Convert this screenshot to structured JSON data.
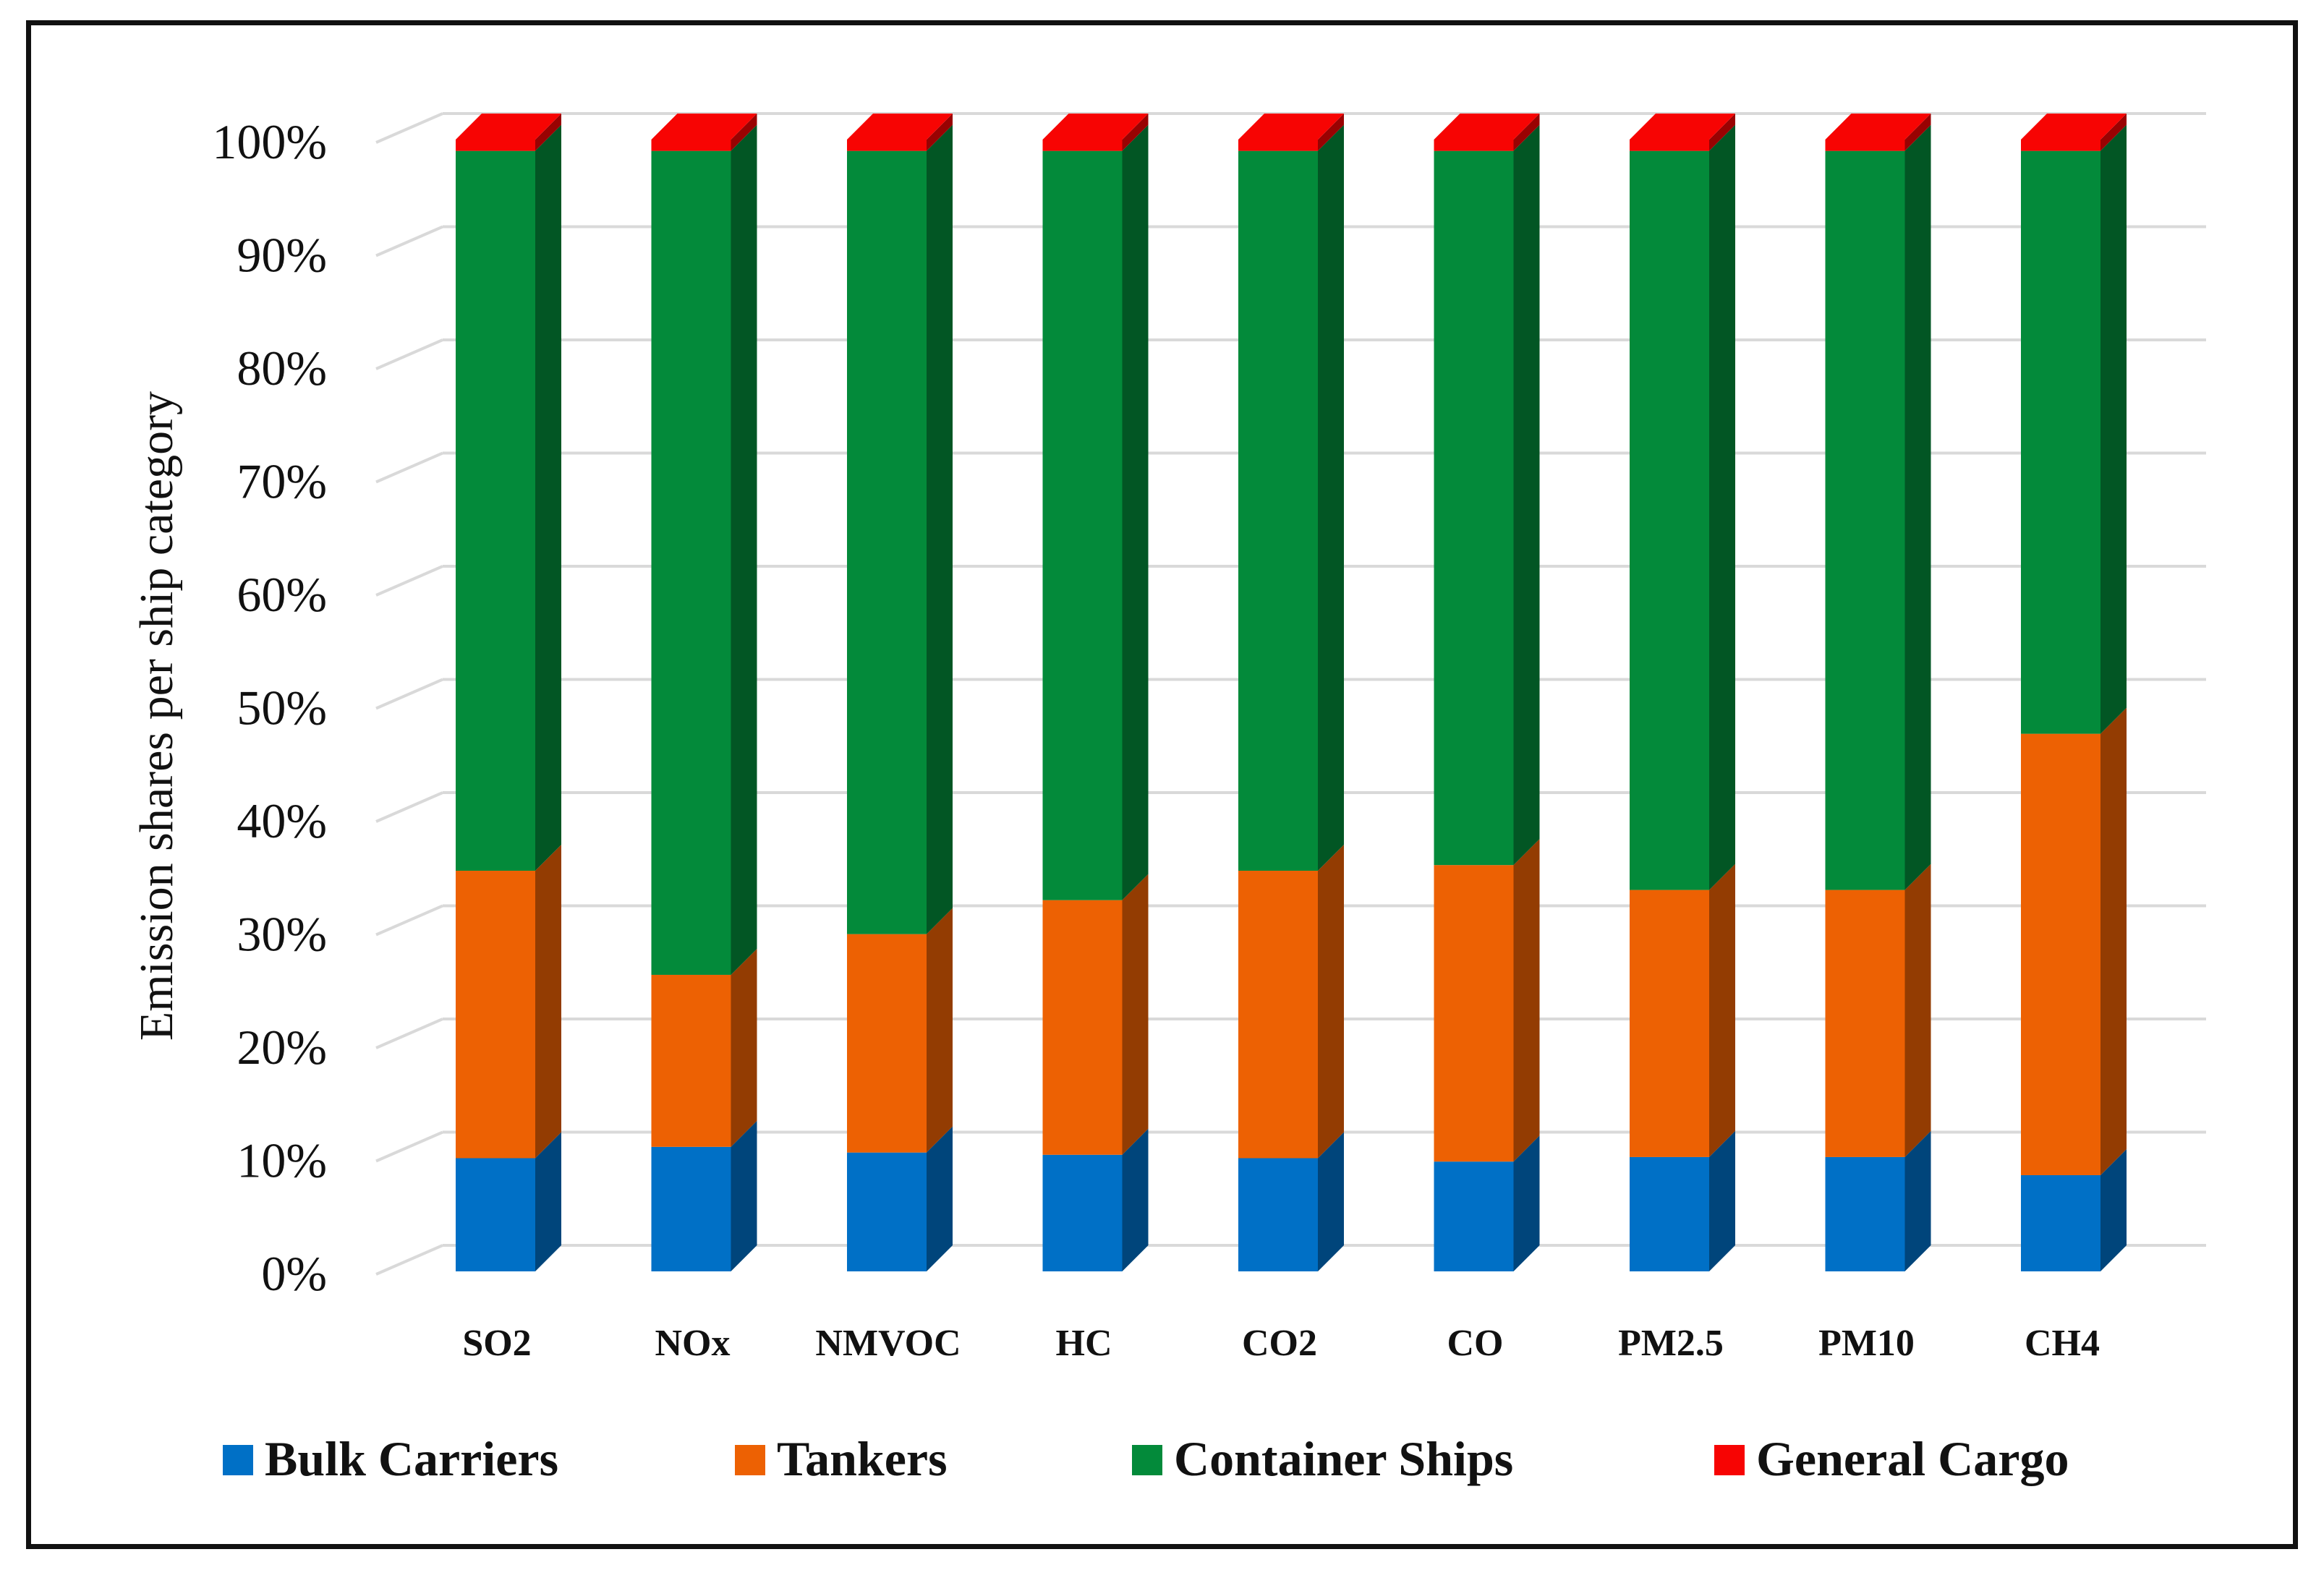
{
  "chart_data": {
    "type": "bar",
    "stacked": true,
    "percent_stacked": true,
    "three_d": true,
    "categories": [
      "SO2",
      "NOx",
      "NMVOC",
      "HC",
      "CO2",
      "CO",
      "PM2.5",
      "PM10",
      "CH4"
    ],
    "series": [
      {
        "name": "Bulk Carriers",
        "color": "#0070C6",
        "values": [
          10,
          11,
          10.5,
          10.3,
          10,
          9.7,
          10.1,
          10.1,
          8.5
        ]
      },
      {
        "name": "Tankers",
        "color": "#ED6103",
        "values": [
          25.4,
          15.2,
          19.3,
          22.5,
          25.4,
          26.2,
          23.6,
          23.6,
          39
        ]
      },
      {
        "name": "Container Ships",
        "color": "#038A3A",
        "values": [
          63.6,
          72.8,
          69.2,
          66.2,
          63.6,
          63.1,
          65.3,
          65.3,
          51.5
        ]
      },
      {
        "name": "General Cargo",
        "color": "#F70403",
        "values": [
          1,
          1,
          1,
          1,
          1,
          1,
          1,
          1,
          1
        ]
      }
    ],
    "ylabel": "Emission shares per ship category",
    "xlabel": "",
    "ylim": [
      0,
      100
    ],
    "yticks": [
      "0%",
      "10%",
      "20%",
      "30%",
      "40%",
      "50%",
      "60%",
      "70%",
      "80%",
      "90%",
      "100%"
    ],
    "grid": true,
    "legend_position": "bottom"
  }
}
